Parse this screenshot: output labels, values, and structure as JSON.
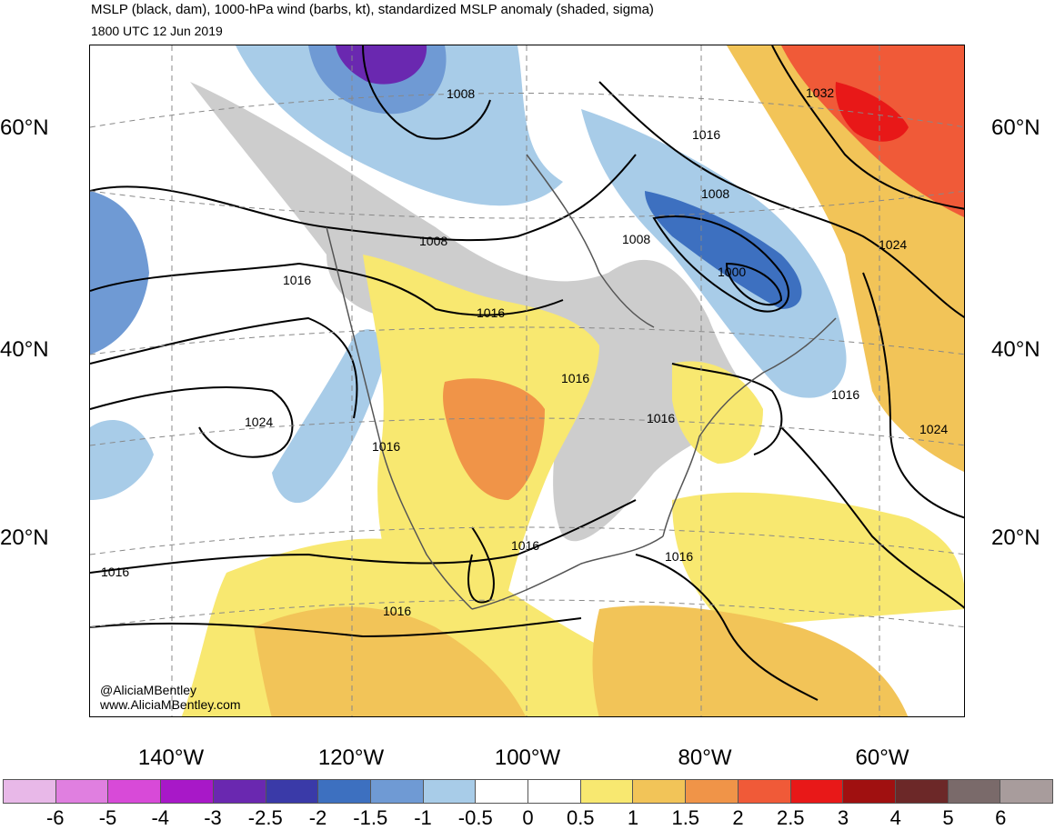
{
  "header": {
    "title": "MSLP (black, dam), 1000-hPa wind (barbs, kt), standardized MSLP anomaly (shaded, sigma)",
    "valid_time": "1800 UTC 12 Jun 2019"
  },
  "map": {
    "latitude_labels": [
      "60°N",
      "40°N",
      "20°N"
    ],
    "longitude_labels": [
      "140°W",
      "120°W",
      "100°W",
      "80°W",
      "60°W"
    ],
    "isobar_labels": [
      "1008",
      "1016",
      "1032",
      "1008",
      "1008",
      "1008",
      "1000",
      "1016",
      "1016",
      "1016",
      "1024",
      "1024",
      "1016",
      "1016",
      "1016",
      "1016",
      "1016",
      "1016",
      "1016",
      "1024"
    ],
    "credit_handle": "@AliciaMBentley",
    "credit_url": "www.AliciaMBentley.com"
  },
  "colorbar": {
    "labels": [
      "-6",
      "-5",
      "-4",
      "-3",
      "-2.5",
      "-2",
      "-1.5",
      "-1",
      "-0.5",
      "0",
      "0.5",
      "1",
      "1.5",
      "2",
      "2.5",
      "3",
      "4",
      "5",
      "6"
    ],
    "colors": [
      "#e8b8e8",
      "#e07fe0",
      "#d84ad8",
      "#a818c8",
      "#6a28b0",
      "#3a3aa8",
      "#3d70c0",
      "#6f9ad4",
      "#a8cce8",
      "#ffffff",
      "#ffffff",
      "#f8e870",
      "#f2c458",
      "#f09448",
      "#f05a38",
      "#e81818",
      "#a01010",
      "#6c2828",
      "#7a6a6a",
      "#a89c9c"
    ]
  },
  "palette": {
    "land_gray": "#c8c8c8",
    "contour": "#000000",
    "coast": "#555555"
  }
}
